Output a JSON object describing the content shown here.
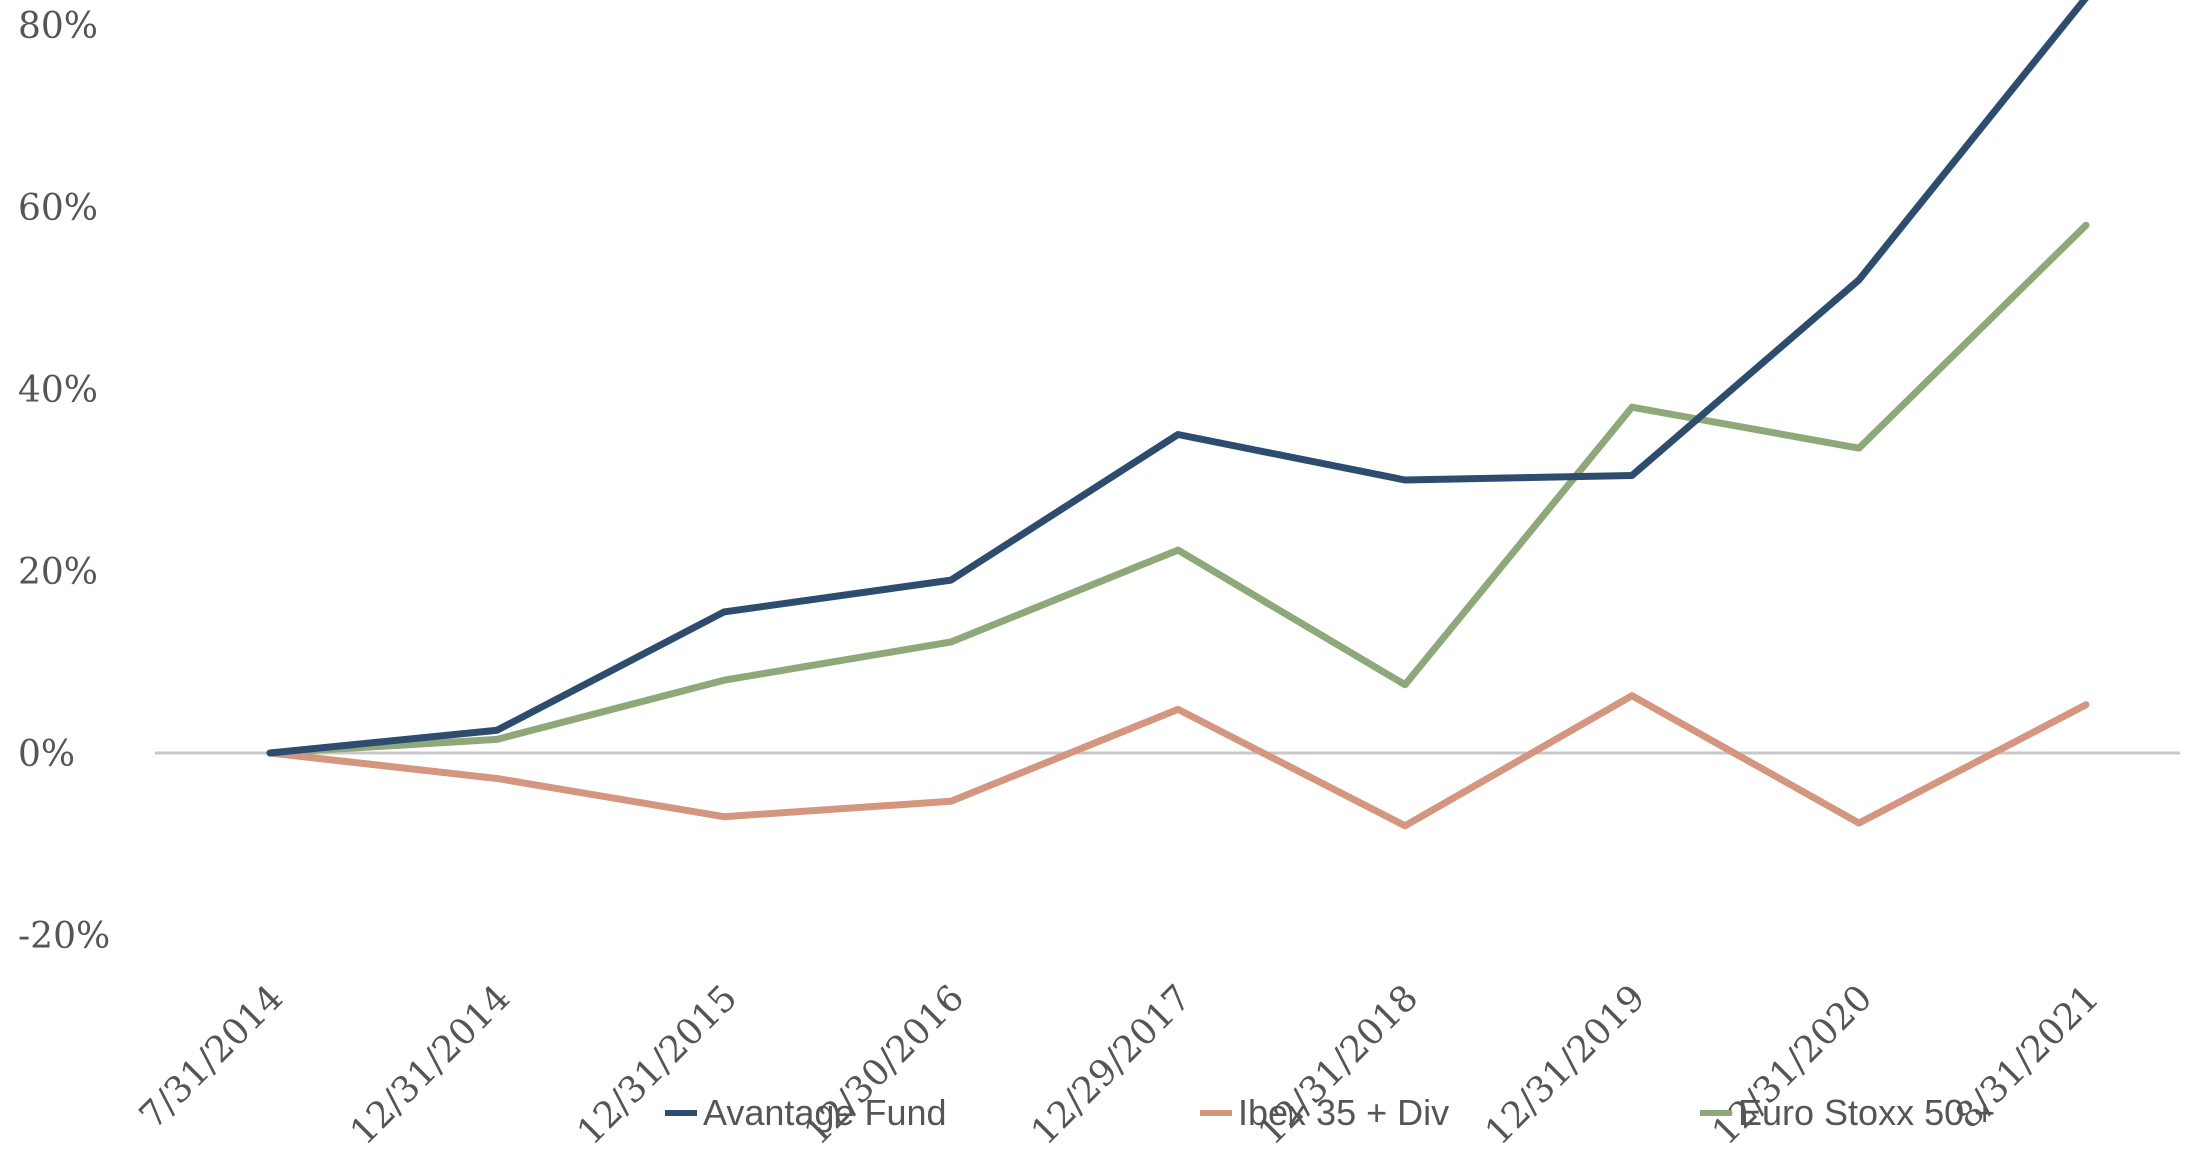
{
  "chart_data": {
    "type": "line",
    "title": "",
    "xlabel": "",
    "ylabel": "",
    "ylim": [
      -20,
      80
    ],
    "yticks": [
      "80%",
      "60%",
      "40%",
      "20%",
      "0%",
      "-20%"
    ],
    "ytick_values": [
      80,
      60,
      40,
      20,
      0,
      -20
    ],
    "categories": [
      "7/31/2014",
      "12/31/2014",
      "12/31/2015",
      "12/30/2016",
      "12/29/2017",
      "12/31/2018",
      "12/31/2019",
      "12/31/2020",
      "8/31/2021"
    ],
    "grid": false,
    "legend_position": "bottom",
    "series": [
      {
        "name": "Avantage Fund",
        "color": "#2e4d6e",
        "values": [
          0,
          2.5,
          15.5,
          19,
          35,
          30,
          30.5,
          52,
          83
        ]
      },
      {
        "name": "Ibex 35 + Div",
        "color": "#d4967f",
        "values": [
          0,
          -2.8,
          -7,
          -5.3,
          4.8,
          -8,
          6.3,
          -7.7,
          5.3
        ]
      },
      {
        "name": "Euro Stoxx 50 +",
        "color": "#8ea87a",
        "values": [
          0,
          1.5,
          8,
          12.2,
          22.3,
          7.5,
          38,
          33.5,
          58
        ]
      }
    ]
  }
}
